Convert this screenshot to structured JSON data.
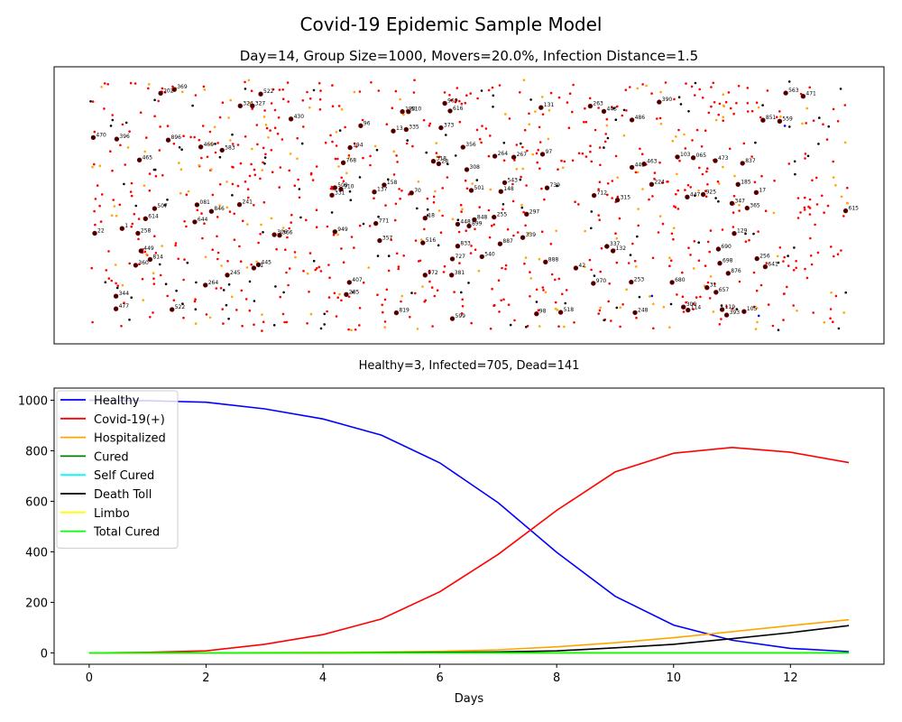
{
  "figure": {
    "suptitle": "Covid-19 Epidemic Sample Model",
    "bg": "#ffffff"
  },
  "scatter_panel": {
    "title": "Day=14, Group Size=1000, Movers=20.0%, Infection Distance=1.5",
    "xlabel": "Healthy=3, Infected=705, Dead=141"
  },
  "chart_data": [
    {
      "type": "scatter",
      "title": "Day=14, Group Size=1000, Movers=20.0%, Infection Distance=1.5",
      "xlabel": "Healthy=3, Infected=705, Dead=141",
      "ylabel": "",
      "xlim": [
        0,
        100
      ],
      "ylim": [
        0,
        100
      ],
      "grid": false,
      "ticks": false,
      "group_size": 1000,
      "counts": {
        "healthy": 3,
        "infected": 705,
        "dead": 141
      },
      "colors": {
        "infected": "#ff0000",
        "hospitalized": "#ffa500",
        "dead": "#000000",
        "healthy": "#0000ff",
        "mover_fill": "#3a0000",
        "mover_edge": "#8b0000"
      },
      "labeled_movers": [
        {
          "id": "202",
          "x": 9.3,
          "y": 94.5
        },
        {
          "id": "369",
          "x": 11.1,
          "y": 96.0
        },
        {
          "id": "522",
          "x": 22.5,
          "y": 94.2
        },
        {
          "id": "324",
          "x": 19.8,
          "y": 89.5
        },
        {
          "id": "327",
          "x": 21.4,
          "y": 89.5
        },
        {
          "id": "430",
          "x": 26.5,
          "y": 84.3
        },
        {
          "id": "969",
          "x": 46.8,
          "y": 90.5
        },
        {
          "id": "616",
          "x": 47.5,
          "y": 87.5
        },
        {
          "id": "190",
          "x": 41.2,
          "y": 87.2
        },
        {
          "id": "510",
          "x": 42.0,
          "y": 87.2
        },
        {
          "id": "131",
          "x": 59.5,
          "y": 88.8
        },
        {
          "id": "263",
          "x": 66.0,
          "y": 89.4
        },
        {
          "id": "443",
          "x": 67.8,
          "y": 87.3
        },
        {
          "id": "390",
          "x": 75.1,
          "y": 91.0
        },
        {
          "id": "486",
          "x": 71.5,
          "y": 83.9
        },
        {
          "id": "563",
          "x": 91.8,
          "y": 94.6
        },
        {
          "id": "471",
          "x": 94.1,
          "y": 93.3
        },
        {
          "id": "851",
          "x": 88.8,
          "y": 83.8
        },
        {
          "id": "559",
          "x": 91.0,
          "y": 83.4
        },
        {
          "id": "470",
          "x": 0.4,
          "y": 76.9
        },
        {
          "id": "396",
          "x": 3.5,
          "y": 76.3
        },
        {
          "id": "896",
          "x": 10.3,
          "y": 75.9
        },
        {
          "id": "469",
          "x": 14.6,
          "y": 73.2
        },
        {
          "id": "583",
          "x": 17.4,
          "y": 71.9
        },
        {
          "id": "96",
          "x": 35.7,
          "y": 81.6
        },
        {
          "id": "13",
          "x": 40.0,
          "y": 79.5
        },
        {
          "id": "335",
          "x": 41.7,
          "y": 80.1
        },
        {
          "id": "373",
          "x": 46.3,
          "y": 80.8
        },
        {
          "id": "194",
          "x": 34.3,
          "y": 72.9
        },
        {
          "id": "356",
          "x": 49.2,
          "y": 73.1
        },
        {
          "id": "264",
          "x": 53.4,
          "y": 69.5
        },
        {
          "id": "267",
          "x": 55.9,
          "y": 69.1
        },
        {
          "id": "97",
          "x": 59.7,
          "y": 70.3
        },
        {
          "id": "103",
          "x": 77.5,
          "y": 69.2
        },
        {
          "id": "065",
          "x": 79.6,
          "y": 68.9
        },
        {
          "id": "473",
          "x": 82.5,
          "y": 67.7
        },
        {
          "id": "837",
          "x": 86.1,
          "y": 66.7
        },
        {
          "id": "463",
          "x": 73.1,
          "y": 66.4
        },
        {
          "id": "445",
          "x": 71.5,
          "y": 65.1
        },
        {
          "id": "465",
          "x": 6.5,
          "y": 68.0
        },
        {
          "id": "768",
          "x": 33.4,
          "y": 66.9
        },
        {
          "id": "318",
          "x": 45.3,
          "y": 67.5
        },
        {
          "id": "28",
          "x": 46.0,
          "y": 66.5
        },
        {
          "id": "308",
          "x": 49.7,
          "y": 64.2
        },
        {
          "id": "158",
          "x": 38.8,
          "y": 58.1
        },
        {
          "id": "509",
          "x": 32.3,
          "y": 57.0
        },
        {
          "id": "910",
          "x": 33.1,
          "y": 56.4
        },
        {
          "id": "137",
          "x": 37.5,
          "y": 55.3
        },
        {
          "id": "70",
          "x": 42.4,
          "y": 54.9
        },
        {
          "id": "331",
          "x": 31.9,
          "y": 54.0
        },
        {
          "id": "501",
          "x": 50.3,
          "y": 55.9
        },
        {
          "id": "543",
          "x": 54.7,
          "y": 59.0
        },
        {
          "id": "148",
          "x": 54.2,
          "y": 55.5
        },
        {
          "id": "739",
          "x": 60.3,
          "y": 56.9
        },
        {
          "id": "712",
          "x": 66.5,
          "y": 53.9
        },
        {
          "id": "315",
          "x": 69.6,
          "y": 52.1
        },
        {
          "id": "224",
          "x": 74.1,
          "y": 58.3
        },
        {
          "id": "447",
          "x": 78.8,
          "y": 53.3
        },
        {
          "id": "925",
          "x": 80.9,
          "y": 54.3
        },
        {
          "id": "185",
          "x": 85.5,
          "y": 58.3
        },
        {
          "id": "17",
          "x": 87.9,
          "y": 55.1
        },
        {
          "id": "347",
          "x": 84.7,
          "y": 50.8
        },
        {
          "id": "365",
          "x": 86.7,
          "y": 48.9
        },
        {
          "id": "615",
          "x": 99.7,
          "y": 47.8
        },
        {
          "id": "507",
          "x": 8.5,
          "y": 48.7
        },
        {
          "id": "081",
          "x": 14.1,
          "y": 50.2
        },
        {
          "id": "846",
          "x": 16.0,
          "y": 47.6
        },
        {
          "id": "241",
          "x": 19.7,
          "y": 50.3
        },
        {
          "id": "614",
          "x": 7.3,
          "y": 44.7
        },
        {
          "id": "644",
          "x": 13.8,
          "y": 43.4
        },
        {
          "id": "22",
          "x": 0.6,
          "y": 38.9
        },
        {
          "id": "1",
          "x": 4.2,
          "y": 40.8
        },
        {
          "id": "258",
          "x": 6.3,
          "y": 38.9
        },
        {
          "id": "949",
          "x": 32.3,
          "y": 39.5
        },
        {
          "id": "771",
          "x": 37.7,
          "y": 42.8
        },
        {
          "id": "18",
          "x": 44.2,
          "y": 44.9
        },
        {
          "id": "297",
          "x": 57.6,
          "y": 46.5
        },
        {
          "id": "848",
          "x": 50.7,
          "y": 44.3
        },
        {
          "id": "255",
          "x": 53.3,
          "y": 45.3
        },
        {
          "id": "448",
          "x": 48.5,
          "y": 42.5
        },
        {
          "id": "899",
          "x": 50.0,
          "y": 41.8
        },
        {
          "id": "129",
          "x": 85.0,
          "y": 38.8
        },
        {
          "id": "306",
          "x": 24.3,
          "y": 38.3
        },
        {
          "id": "566",
          "x": 25.0,
          "y": 38.1
        },
        {
          "id": "357",
          "x": 38.2,
          "y": 36.0
        },
        {
          "id": "516",
          "x": 43.9,
          "y": 35.1
        },
        {
          "id": "833",
          "x": 48.5,
          "y": 33.8
        },
        {
          "id": "887",
          "x": 54.1,
          "y": 34.7
        },
        {
          "id": "339",
          "x": 57.1,
          "y": 37.2
        },
        {
          "id": "337",
          "x": 68.2,
          "y": 33.7
        },
        {
          "id": "132",
          "x": 69.0,
          "y": 31.9
        },
        {
          "id": "690",
          "x": 82.9,
          "y": 32.6
        },
        {
          "id": "449",
          "x": 6.7,
          "y": 31.9
        },
        {
          "id": "814",
          "x": 7.9,
          "y": 28.5
        },
        {
          "id": "360",
          "x": 6.0,
          "y": 26.2
        },
        {
          "id": "445",
          "x": 22.2,
          "y": 26.4
        },
        {
          "id": "41",
          "x": 21.6,
          "y": 25.1
        },
        {
          "id": "727",
          "x": 47.8,
          "y": 28.7
        },
        {
          "id": "540",
          "x": 51.7,
          "y": 29.6
        },
        {
          "id": "888",
          "x": 60.1,
          "y": 27.5
        },
        {
          "id": "42",
          "x": 64.1,
          "y": 25.1
        },
        {
          "id": "698",
          "x": 83.1,
          "y": 27.0
        },
        {
          "id": "256",
          "x": 88.0,
          "y": 28.8
        },
        {
          "id": "641",
          "x": 89.1,
          "y": 25.6
        },
        {
          "id": "245",
          "x": 18.1,
          "y": 22.3
        },
        {
          "id": "972",
          "x": 44.2,
          "y": 22.3
        },
        {
          "id": "381",
          "x": 47.7,
          "y": 22.3
        },
        {
          "id": "876",
          "x": 84.2,
          "y": 23.0
        },
        {
          "id": "264",
          "x": 15.2,
          "y": 18.3
        },
        {
          "id": "407",
          "x": 34.2,
          "y": 19.4
        },
        {
          "id": "970",
          "x": 66.4,
          "y": 19.0
        },
        {
          "id": "253",
          "x": 71.4,
          "y": 19.5
        },
        {
          "id": "680",
          "x": 76.8,
          "y": 19.4
        },
        {
          "id": "31",
          "x": 81.4,
          "y": 17.3
        },
        {
          "id": "657",
          "x": 82.6,
          "y": 15.5
        },
        {
          "id": "344",
          "x": 3.4,
          "y": 13.9
        },
        {
          "id": "285",
          "x": 33.8,
          "y": 14.6
        },
        {
          "id": "477",
          "x": 3.4,
          "y": 8.9
        },
        {
          "id": "522",
          "x": 10.8,
          "y": 8.6
        },
        {
          "id": "819",
          "x": 40.4,
          "y": 7.3
        },
        {
          "id": "599",
          "x": 47.8,
          "y": 5.0
        },
        {
          "id": "98",
          "x": 58.9,
          "y": 6.9
        },
        {
          "id": "518",
          "x": 62.1,
          "y": 7.5
        },
        {
          "id": "248",
          "x": 71.9,
          "y": 7.4
        },
        {
          "id": "309",
          "x": 78.3,
          "y": 9.6
        },
        {
          "id": "114",
          "x": 78.9,
          "y": 8.4
        },
        {
          "id": "119",
          "x": 83.4,
          "y": 8.6
        },
        {
          "id": "393",
          "x": 84.0,
          "y": 6.4
        },
        {
          "id": "105",
          "x": 86.3,
          "y": 7.8
        }
      ]
    },
    {
      "type": "line",
      "title": "",
      "xlabel": "Days",
      "ylabel": "",
      "xlim": [
        -0.6,
        13.6
      ],
      "ylim": [
        -45,
        1048
      ],
      "grid": false,
      "legend": "top-left",
      "xticks": [
        0,
        2,
        4,
        6,
        8,
        10,
        12
      ],
      "yticks": [
        0,
        200,
        400,
        600,
        800,
        1000
      ],
      "x": [
        0,
        1,
        2,
        3,
        4,
        5,
        6,
        7,
        8,
        9,
        10,
        11,
        12,
        13
      ],
      "series": [
        {
          "name": "Healthy",
          "color": "#0000ff",
          "values": [
            1000,
            998,
            992,
            966,
            926,
            862,
            752,
            594,
            398,
            224,
            110,
            50,
            18,
            5
          ]
        },
        {
          "name": "Covid-19(+)",
          "color": "#ff0000",
          "values": [
            0,
            2,
            8,
            34,
            72,
            134,
            242,
            390,
            564,
            716,
            790,
            813,
            794,
            753
          ]
        },
        {
          "name": "Hospitalized",
          "color": "#ffa500",
          "values": [
            0,
            0,
            0,
            1,
            2,
            3,
            6,
            12,
            24,
            40,
            60,
            84,
            108,
            131
          ]
        },
        {
          "name": "Cured",
          "color": "#008000",
          "values": [
            0,
            0,
            0,
            0,
            0,
            0,
            0,
            0,
            0,
            0,
            0,
            0,
            0,
            0
          ]
        },
        {
          "name": "Self Cured",
          "color": "#00ffff",
          "values": [
            0,
            0,
            0,
            0,
            0,
            0,
            0,
            0,
            0,
            0,
            0,
            0,
            0,
            0
          ]
        },
        {
          "name": "Death Toll",
          "color": "#000000",
          "values": [
            0,
            0,
            0,
            0,
            0,
            1,
            2,
            4,
            8,
            20,
            34,
            56,
            80,
            108
          ]
        },
        {
          "name": "Limbo",
          "color": "#ffff00",
          "values": [
            0,
            0,
            0,
            0,
            0,
            0,
            0,
            0,
            0,
            0,
            0,
            0,
            0,
            0
          ]
        },
        {
          "name": "Total Cured",
          "color": "#00ff00",
          "values": [
            0,
            0,
            0,
            0,
            0,
            0,
            0,
            0,
            0,
            0,
            0,
            0,
            0,
            0
          ]
        }
      ]
    }
  ]
}
